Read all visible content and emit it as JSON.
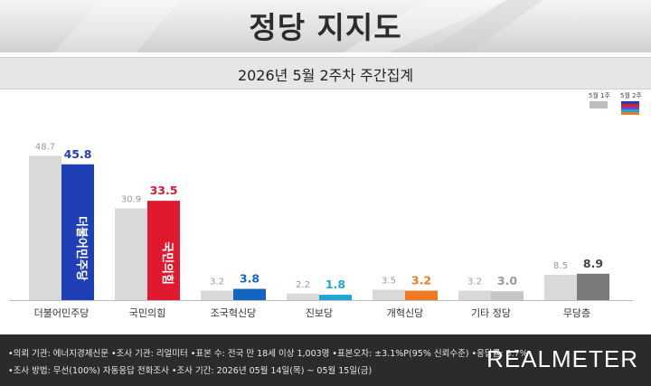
{
  "header": {
    "title": "정당 지지도"
  },
  "subtitle": "2026년 5월 2주차 주간집계",
  "legend": {
    "prev_label": "5월 1주",
    "curr_label": "5월 2주"
  },
  "chart_data": {
    "type": "bar",
    "categories": [
      "더불어민주당",
      "국민의힘",
      "조국혁신당",
      "진보당",
      "개혁신당",
      "기타 정당",
      "무당층"
    ],
    "series": [
      {
        "name": "5월 1주",
        "values": [
          48.7,
          30.9,
          3.2,
          2.2,
          3.5,
          3.2,
          8.5
        ]
      },
      {
        "name": "5월 2주",
        "values": [
          45.8,
          33.5,
          3.8,
          1.8,
          3.2,
          3.0,
          8.9
        ]
      }
    ],
    "prev_color": "#d9d9d9",
    "curr_colors": [
      "#1f3fb4",
      "#e0192f",
      "#1565c0",
      "#1ea6d6",
      "#f07a22",
      "#c6c6c6",
      "#7a7a7a"
    ],
    "curr_label_colors": [
      "#1f3fb4",
      "#e0192f",
      "#1565c0",
      "#1ea6d6",
      "#f07a22",
      "#9a9a9a",
      "#444444"
    ],
    "bar_logos": [
      "더불어민주당",
      "국민의힘"
    ],
    "ylim": [
      0,
      50
    ],
    "grid": false,
    "legend_position": "top-right"
  },
  "footer": {
    "line1": "•의뢰 기관: 에너지경제신문 •조사 기관: 리얼미터 •표본 수: 전국 만 18세 이상 1,003명 •표본오차: ±3.1%P(95% 신뢰수준) •응답률: 3.7%",
    "line2": "•조사 방법: 무선(100%) 자동응답 전화조사 •조사 기간: 2026년 05월 14일(목) ~ 05월 15일(금)",
    "brand": "REALMETER"
  }
}
